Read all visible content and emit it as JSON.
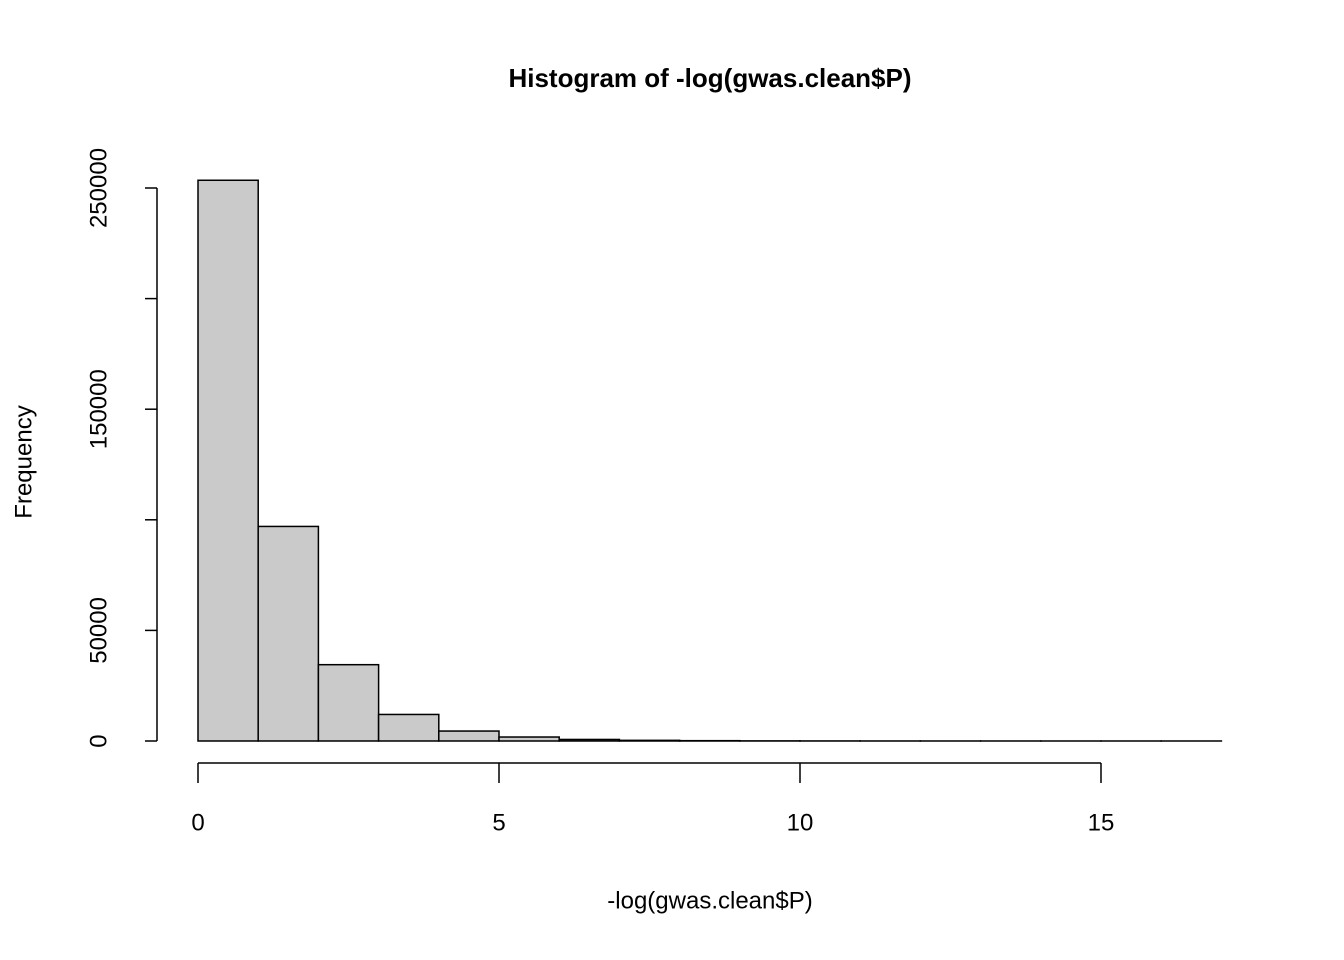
{
  "chart_data": {
    "type": "histogram",
    "title": "Histogram of -log(gwas.clean$P)",
    "x_label": "-log(gwas.clean$P)",
    "y_label": "Frequency",
    "bins": [
      0,
      1,
      2,
      3,
      4,
      5,
      6,
      7,
      8,
      9,
      10,
      11,
      12,
      13,
      14,
      15,
      16,
      17
    ],
    "values": [
      253500,
      97000,
      34500,
      12000,
      4500,
      1800,
      700,
      300,
      150,
      60,
      30,
      15,
      8,
      5,
      3,
      2,
      1
    ],
    "color": "#cacaca",
    "xlim": [
      0,
      15
    ],
    "xticks": [
      0,
      5,
      10,
      15
    ],
    "ylim": [
      0,
      250000
    ],
    "yticks": [
      0,
      50000,
      {
        "value": 100000,
        "label": null
      },
      150000,
      {
        "value": 200000,
        "label": null
      },
      250000
    ]
  }
}
